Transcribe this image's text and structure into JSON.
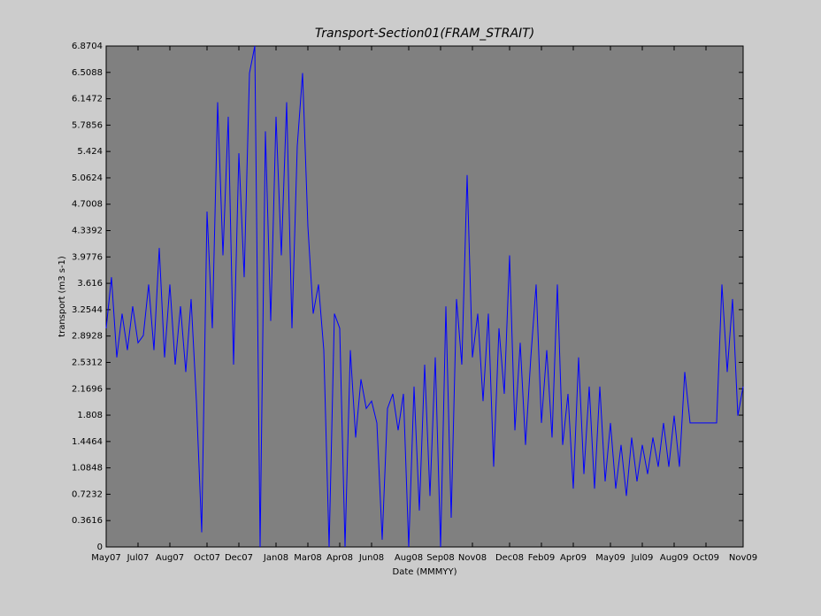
{
  "chart_data": {
    "type": "line",
    "title": "Transport-Section01(FRAM_STRAIT)",
    "xlabel": "Date (MMMYY)",
    "ylabel": "transport (m3 s-1)",
    "categories": [
      "May07",
      null,
      null,
      null,
      null,
      null,
      "Jul07",
      null,
      null,
      null,
      null,
      null,
      "Aug07",
      null,
      null,
      null,
      null,
      null,
      null,
      "Oct07",
      null,
      null,
      null,
      null,
      null,
      "Dec07",
      null,
      null,
      null,
      null,
      null,
      null,
      "Jan08",
      null,
      null,
      null,
      null,
      null,
      "Mar08",
      null,
      null,
      null,
      null,
      null,
      "Apr08",
      null,
      null,
      null,
      null,
      null,
      "Jun08",
      null,
      null,
      null,
      null,
      null,
      null,
      "Aug08",
      null,
      null,
      null,
      null,
      null,
      "Sep08",
      null,
      null,
      null,
      null,
      null,
      "Nov08",
      null,
      null,
      null,
      null,
      null,
      null,
      "Dec08",
      null,
      null,
      null,
      null,
      null,
      "Feb09",
      null,
      null,
      null,
      null,
      null,
      "Apr09",
      null,
      null,
      null,
      null,
      null,
      null,
      "May09",
      null,
      null,
      null,
      null,
      null,
      "Jul09",
      null,
      null,
      null,
      null,
      null,
      "Aug09",
      null,
      null,
      null,
      null,
      null,
      "Oct09",
      null,
      null,
      null,
      null,
      null,
      null,
      "Nov09"
    ],
    "series": [
      {
        "name": "transport",
        "color": "#0000ff",
        "values": [
          3.0,
          3.7,
          2.6,
          3.2,
          2.7,
          3.3,
          2.8,
          2.9,
          3.6,
          2.7,
          4.1,
          2.6,
          3.6,
          2.5,
          3.3,
          2.4,
          3.4,
          2.0,
          0.2,
          4.6,
          3.0,
          6.1,
          4.0,
          5.9,
          2.5,
          5.4,
          3.7,
          6.5,
          6.8704,
          0,
          5.7,
          3.1,
          5.9,
          4.0,
          6.1,
          3.0,
          5.5,
          6.5,
          4.4,
          3.2,
          3.6,
          2.7,
          0,
          3.2,
          3.0,
          0,
          2.7,
          1.5,
          2.3,
          1.9,
          2.0,
          1.7,
          0.1,
          1.9,
          2.1,
          1.6,
          2.1,
          0,
          2.2,
          0.5,
          2.5,
          0.7,
          2.6,
          0,
          3.3,
          0.4,
          3.4,
          2.5,
          5.1,
          2.6,
          3.2,
          2.0,
          3.2,
          1.1,
          3.0,
          2.1,
          4.0,
          1.6,
          2.8,
          1.4,
          2.6,
          3.6,
          1.7,
          2.7,
          1.5,
          3.6,
          1.4,
          2.1,
          0.8,
          2.6,
          1.0,
          2.2,
          0.8,
          2.2,
          0.9,
          1.7,
          0.8,
          1.4,
          0.7,
          1.5,
          0.9,
          1.4,
          1.0,
          1.5,
          1.1,
          1.7,
          1.1,
          1.8,
          1.1,
          2.4,
          1.7,
          1.7,
          1.7,
          1.7,
          1.7,
          1.7,
          3.6,
          2.4,
          3.4,
          1.8,
          2.2
        ]
      }
    ],
    "ylim": [
      0,
      6.8704
    ],
    "yticks": [
      0,
      0.3616,
      0.7232,
      1.0848,
      1.4464,
      1.808,
      2.1696,
      2.5312,
      2.8928,
      3.2544,
      3.616,
      3.9776,
      4.3392,
      4.7008,
      5.0624,
      5.424,
      5.7856,
      6.1472,
      6.5088,
      6.8704
    ],
    "plot_background": "#808080"
  }
}
